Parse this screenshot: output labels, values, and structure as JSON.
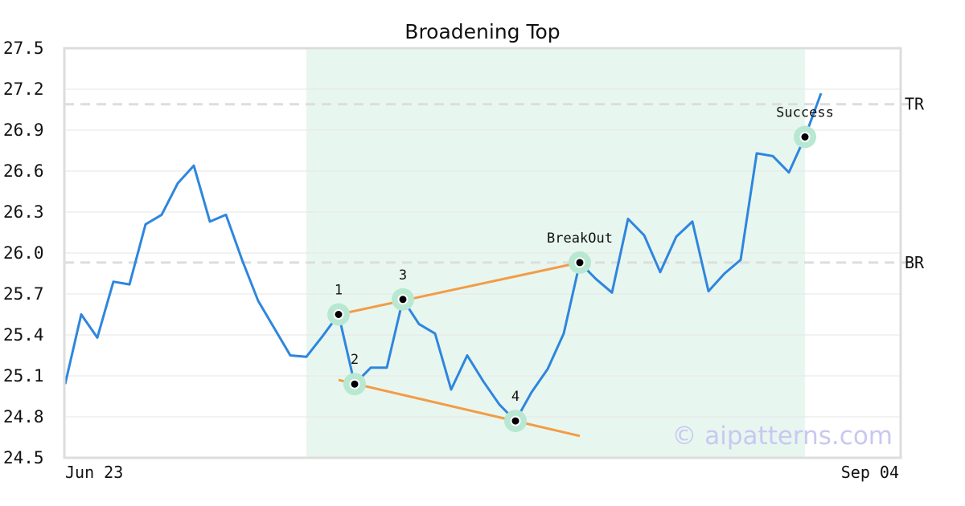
{
  "chart_data": {
    "type": "line",
    "title": "Broadening Top",
    "xlabel": "",
    "ylabel": "",
    "ylim": [
      24.5,
      27.5
    ],
    "yticks": [
      "24.5",
      "24.8",
      "25.1",
      "25.4",
      "25.7",
      "26.0",
      "26.3",
      "26.6",
      "26.9",
      "27.2",
      "27.5"
    ],
    "x_start_label": "Jun 23",
    "x_end_label": "Sep 04",
    "grid": true,
    "series": [
      {
        "values": [
          25.04,
          25.55,
          25.38,
          25.79,
          25.77,
          26.21,
          26.28,
          26.51,
          26.64,
          26.23,
          26.28,
          25.95,
          25.65,
          25.45,
          25.25,
          25.24,
          25.39,
          25.55,
          25.04,
          25.16,
          25.16,
          25.66,
          25.48,
          25.41,
          25.0,
          25.25,
          25.06,
          24.89,
          24.77,
          24.98,
          25.15,
          25.41,
          25.93,
          25.81,
          25.71,
          26.25,
          26.13,
          25.86,
          26.12,
          26.23,
          25.72,
          25.85,
          25.95,
          26.73,
          26.71,
          26.59,
          26.85,
          27.17
        ]
      }
    ],
    "pattern_region": {
      "start_index": 15,
      "end_index": 46
    },
    "reference_lines": [
      {
        "label": "TR",
        "value": 27.09
      },
      {
        "label": "BR",
        "value": 25.93
      }
    ],
    "trendlines": [
      {
        "from": [
          17,
          25.55
        ],
        "to": [
          32,
          25.93
        ]
      },
      {
        "from": [
          17,
          25.07
        ],
        "to": [
          32,
          24.66
        ]
      }
    ],
    "points": [
      {
        "label": "1",
        "index": 17,
        "value": 25.55
      },
      {
        "label": "2",
        "index": 18,
        "value": 25.04
      },
      {
        "label": "3",
        "index": 21,
        "value": 25.66
      },
      {
        "label": "4",
        "index": 28,
        "value": 24.77
      },
      {
        "label": "BreakOut",
        "index": 32,
        "value": 25.93
      },
      {
        "label": "Success",
        "index": 46,
        "value": 26.85
      }
    ],
    "watermark": "© aipatterns.com",
    "colors": {
      "line": "#2e86de",
      "trendline": "#f39c45",
      "highlight": "#e8f6f0",
      "marker_halo": "#b8e8d2",
      "reference": "#dddddd",
      "grid": "#e6e6e6",
      "frame": "#dddddd"
    }
  }
}
